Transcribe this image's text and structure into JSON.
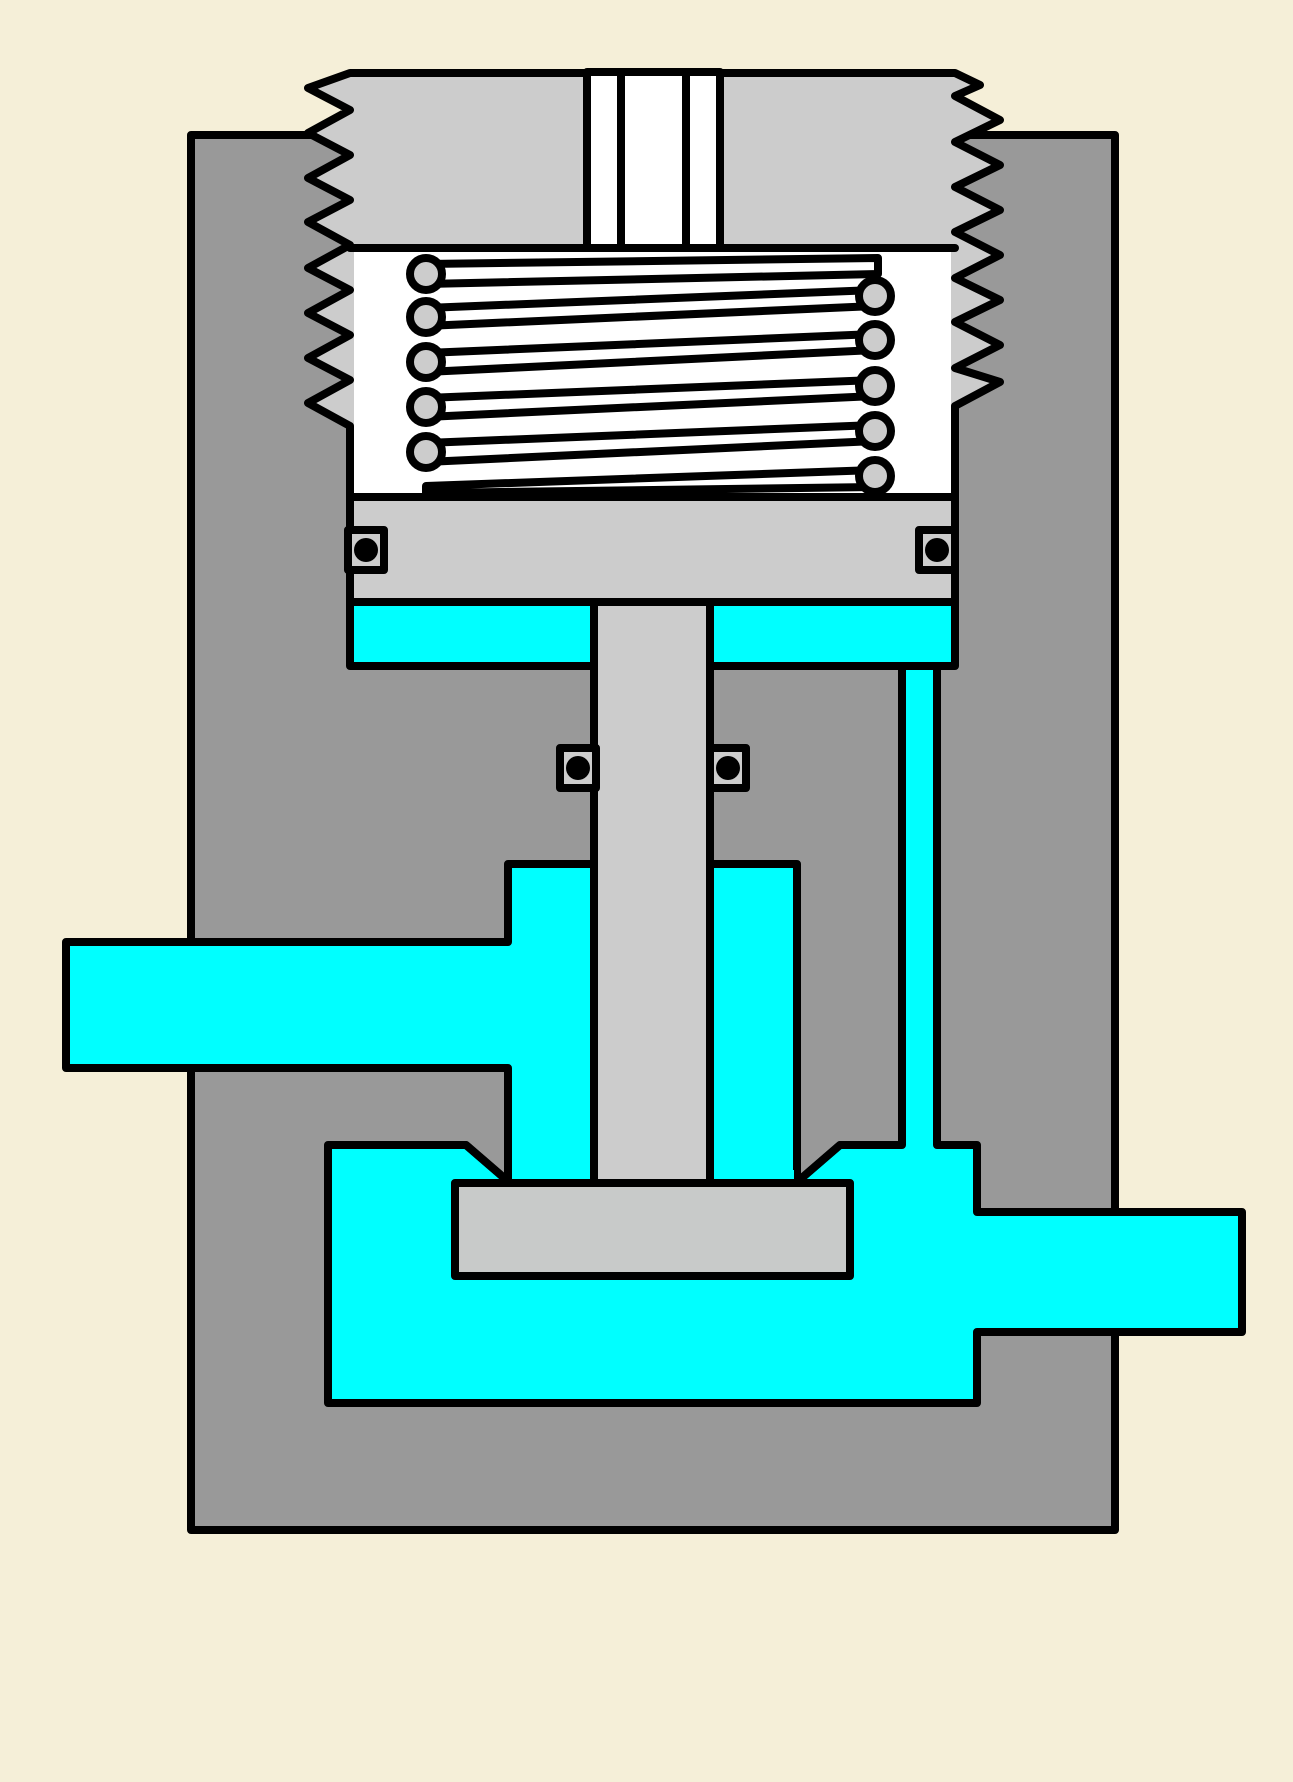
{
  "diagram": {
    "kind": "pressure-regulating-valve-cross-section",
    "colors": {
      "background": "#f5efd8",
      "body": "#999999",
      "cap": "#cccccc",
      "parts": "#cccccc",
      "disc": "#c8cac9",
      "fluid": "#00ffff",
      "spring_chamber": "#ffffff",
      "outline": "#000000"
    },
    "parts": [
      "valve-body",
      "threaded-adjusting-cap",
      "compression-spring",
      "piston",
      "piston-o-rings",
      "valve-stem",
      "stem-seals",
      "valve-disc",
      "inlet-port",
      "outlet-port",
      "feedback-passage",
      "pressure-chamber"
    ]
  }
}
